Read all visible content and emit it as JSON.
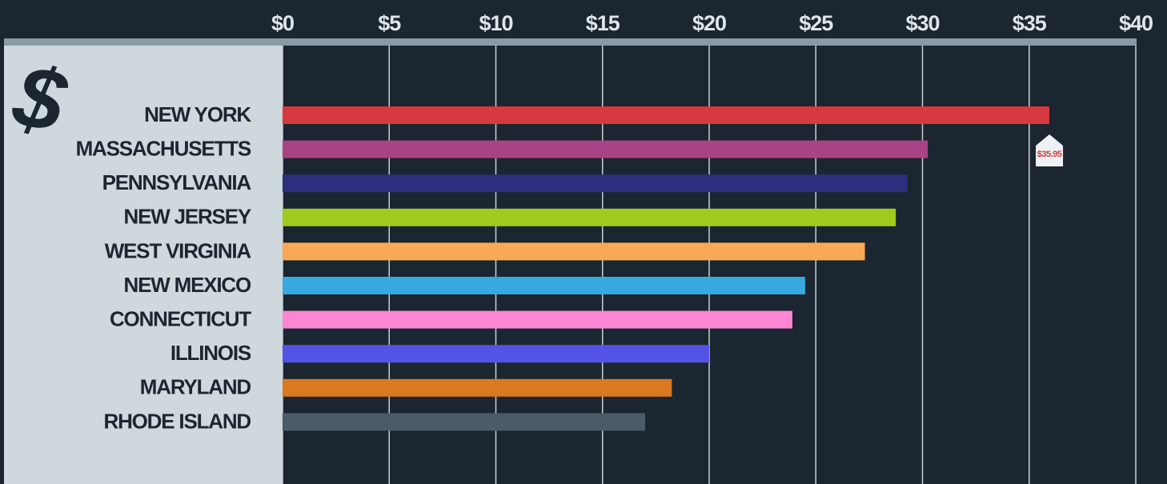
{
  "chart_data": {
    "type": "bar",
    "orientation": "horizontal",
    "logo": "$",
    "categories": [
      "NEW YORK",
      "MASSACHUSETTS",
      "PENNSYLVANIA",
      "NEW JERSEY",
      "WEST VIRGINIA",
      "NEW MEXICO",
      "CONNECTICUT",
      "ILLINOIS",
      "MARYLAND",
      "RHODE ISLAND"
    ],
    "values": [
      35.95,
      30.25,
      29.3,
      28.75,
      27.3,
      24.5,
      23.9,
      20,
      18.25,
      17
    ],
    "value_labels": [
      "$35.95",
      null,
      null,
      null,
      null,
      null,
      null,
      null,
      null,
      null
    ],
    "colors": [
      "#d63a3e",
      "#a94386",
      "#2e2e7e",
      "#9fcb1e",
      "#fba856",
      "#38a8e0",
      "#fd86d3",
      "#5354e6",
      "#d97920",
      "#4a5c68"
    ],
    "xlim": [
      0,
      40
    ],
    "xticks": [
      {
        "value": 0,
        "label": "$0"
      },
      {
        "value": 5,
        "label": "$5"
      },
      {
        "value": 10,
        "label": "$10"
      },
      {
        "value": 15,
        "label": "$15"
      },
      {
        "value": 20,
        "label": "$20"
      },
      {
        "value": 25,
        "label": "$25"
      },
      {
        "value": 30,
        "label": "$30"
      },
      {
        "value": 35,
        "label": "$35"
      },
      {
        "value": 40,
        "label": "$40"
      }
    ],
    "grid": true
  }
}
